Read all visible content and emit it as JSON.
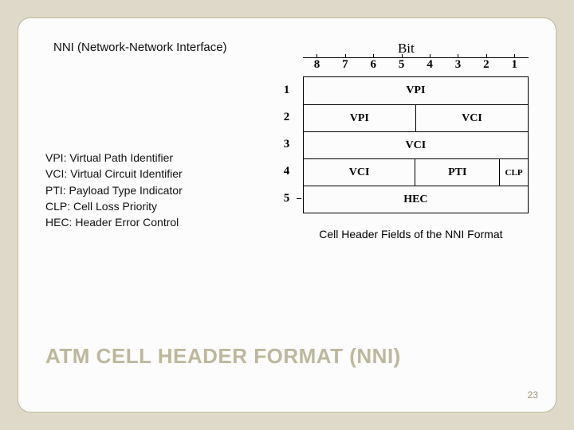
{
  "subtitle": "NNI (Network-Network Interface)",
  "definitions": [
    "VPI: Virtual Path Identifier",
    "VCI: Virtual Circuit Identifier",
    "PTI: Payload Type Indicator",
    "CLP: Cell Loss Priority",
    "HEC: Header Error Control"
  ],
  "diagram": {
    "bit_label": "Bit",
    "bit_numbers": [
      "8",
      "7",
      "6",
      "5",
      "4",
      "3",
      "2",
      "1"
    ],
    "byte_numbers": [
      "1",
      "2",
      "3",
      "4",
      "5"
    ],
    "rows": [
      [
        {
          "label": "VPI",
          "span": 8
        }
      ],
      [
        {
          "label": "VPI",
          "span": 4
        },
        {
          "label": "VCI",
          "span": 4
        }
      ],
      [
        {
          "label": "VCI",
          "span": 8
        }
      ],
      [
        {
          "label": "VCI",
          "span": 4
        },
        {
          "label": "PTI",
          "span": 3
        },
        {
          "label": "CLP",
          "span": 1
        }
      ],
      [
        {
          "label": "HEC",
          "span": 8
        }
      ]
    ],
    "caption": "Cell Header Fields of the NNI Format"
  },
  "title": "ATM CELL HEADER FORMAT (NNI)",
  "page_number": "23",
  "colors": {
    "slide_bg": "#fcfcfc",
    "outer_bg": "#ded9c9",
    "title_color": "#bdb89b",
    "border_color": "#000000"
  }
}
